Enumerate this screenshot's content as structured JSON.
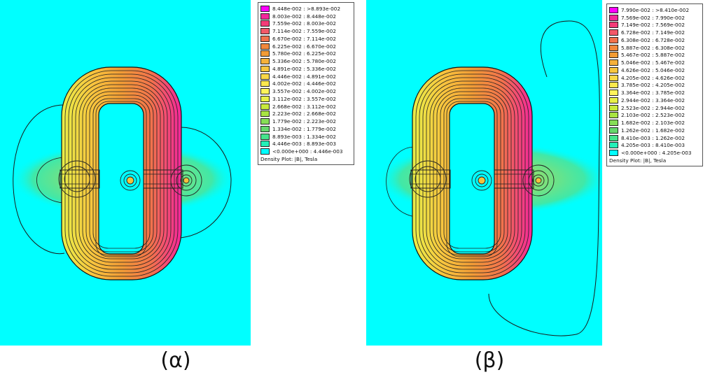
{
  "panels": [
    {
      "id": "alpha",
      "caption": "(α)",
      "legend": {
        "title": "Density Plot: |B|, Tesla",
        "rows": [
          {
            "label": "8.448e-002 : >8.893e-002",
            "color": "#ff00ff"
          },
          {
            "label": "8.003e-002 : 8.448e-002",
            "color": "#f4269b"
          },
          {
            "label": "7.559e-002 : 8.003e-002",
            "color": "#f43c78"
          },
          {
            "label": "7.114e-002 : 7.559e-002",
            "color": "#f25868"
          },
          {
            "label": "6.670e-002 : 7.114e-002",
            "color": "#f2724c"
          },
          {
            "label": "6.225e-002 : 6.670e-002",
            "color": "#f2883c"
          },
          {
            "label": "5.780e-002 : 6.225e-002",
            "color": "#f29c36"
          },
          {
            "label": "5.336e-002 : 5.780e-002",
            "color": "#f5b13a"
          },
          {
            "label": "4.891e-002 : 5.336e-002",
            "color": "#f8c63e"
          },
          {
            "label": "4.446e-002 : 4.891e-002",
            "color": "#fad846"
          },
          {
            "label": "4.002e-002 : 4.446e-002",
            "color": "#fce84e"
          },
          {
            "label": "3.557e-002 : 4.002e-002",
            "color": "#fff45a"
          },
          {
            "label": "3.112e-002 : 3.557e-002",
            "color": "#e8f048"
          },
          {
            "label": "2.668e-002 : 3.112e-002",
            "color": "#c8ea3c"
          },
          {
            "label": "2.223e-002 : 2.668e-002",
            "color": "#a8e442"
          },
          {
            "label": "1.779e-002 : 2.223e-002",
            "color": "#86de56"
          },
          {
            "label": "1.334e-002 : 1.779e-002",
            "color": "#66d86c"
          },
          {
            "label": "8.893e-003 : 1.334e-002",
            "color": "#46e48c"
          },
          {
            "label": "4.446e-003 : 8.893e-003",
            "color": "#24f0b8"
          },
          {
            "label": "<0.000e+000 : 4.446e-003",
            "color": "#00ffff"
          }
        ]
      }
    },
    {
      "id": "beta",
      "caption": "(β)",
      "legend": {
        "title": "Density Plot: |B|, Tesla",
        "rows": [
          {
            "label": "7.990e-002 : >8.410e-002",
            "color": "#ff00ff"
          },
          {
            "label": "7.569e-002 : 7.990e-002",
            "color": "#f4269b"
          },
          {
            "label": "7.149e-002 : 7.569e-002",
            "color": "#f43c78"
          },
          {
            "label": "6.728e-002 : 7.149e-002",
            "color": "#f25868"
          },
          {
            "label": "6.308e-002 : 6.728e-002",
            "color": "#f2724c"
          },
          {
            "label": "5.887e-002 : 6.308e-002",
            "color": "#f2883c"
          },
          {
            "label": "5.467e-002 : 5.887e-002",
            "color": "#f29c36"
          },
          {
            "label": "5.046e-002 : 5.467e-002",
            "color": "#f5b13a"
          },
          {
            "label": "4.626e-002 : 5.046e-002",
            "color": "#f8c63e"
          },
          {
            "label": "4.205e-002 : 4.626e-002",
            "color": "#fad846"
          },
          {
            "label": "3.785e-002 : 4.205e-002",
            "color": "#fce84e"
          },
          {
            "label": "3.364e-002 : 3.785e-002",
            "color": "#fff45a"
          },
          {
            "label": "2.944e-002 : 3.364e-002",
            "color": "#e8f048"
          },
          {
            "label": "2.523e-002 : 2.944e-002",
            "color": "#c8ea3c"
          },
          {
            "label": "2.103e-002 : 2.523e-002",
            "color": "#a8e442"
          },
          {
            "label": "1.682e-002 : 2.103e-002",
            "color": "#86de56"
          },
          {
            "label": "1.262e-002 : 1.682e-002",
            "color": "#66d86c"
          },
          {
            "label": "8.410e-003 : 1.262e-002",
            "color": "#46e48c"
          },
          {
            "label": "4.205e-003 : 8.410e-003",
            "color": "#24f0b8"
          },
          {
            "label": "<0.000e+000 : 4.205e-003",
            "color": "#00ffff"
          }
        ]
      }
    }
  ]
}
